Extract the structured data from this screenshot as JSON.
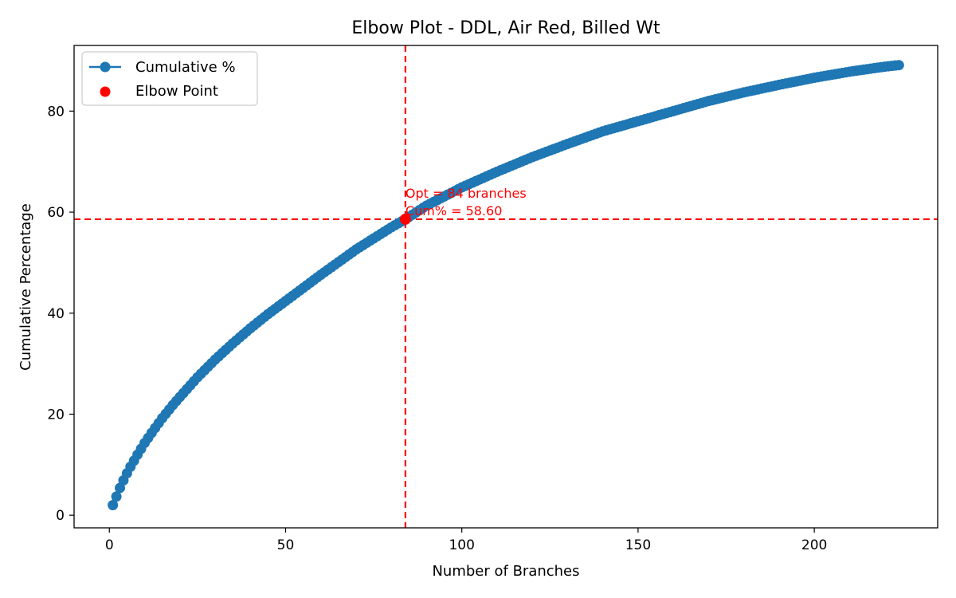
{
  "chart_data": {
    "type": "line",
    "title": "Elbow Plot - DDL, Air Red, Billed Wt",
    "xlabel": "Number of Branches",
    "ylabel": "Cumulative Percentage",
    "xlim": [
      -10,
      235
    ],
    "ylim": [
      -2.5,
      93
    ],
    "xticks": [
      0,
      50,
      100,
      150,
      200
    ],
    "yticks": [
      0,
      20,
      40,
      60,
      80
    ],
    "grid": false,
    "legend_position": "top-left",
    "series": [
      {
        "name": "Cumulative %",
        "color": "#1f77b4",
        "marker": "circle",
        "x": [
          1,
          2,
          3,
          4,
          5,
          6,
          8,
          10,
          12,
          15,
          18,
          20,
          25,
          30,
          35,
          40,
          45,
          50,
          55,
          60,
          65,
          70,
          75,
          80,
          84,
          90,
          95,
          100,
          110,
          120,
          130,
          140,
          150,
          160,
          170,
          180,
          190,
          200,
          210,
          215,
          220,
          224
        ],
        "y": [
          2.0,
          3.7,
          5.4,
          6.9,
          8.3,
          9.6,
          12.0,
          14.3,
          16.3,
          19.2,
          21.8,
          23.4,
          27.3,
          30.8,
          34.0,
          37.0,
          39.8,
          42.4,
          45.0,
          47.6,
          50.1,
          52.6,
          54.8,
          57.0,
          58.6,
          61.3,
          63.1,
          64.9,
          68.0,
          70.9,
          73.5,
          76.0,
          78.0,
          80.0,
          82.0,
          83.7,
          85.2,
          86.6,
          87.8,
          88.3,
          88.8,
          89.1
        ]
      }
    ],
    "elbow_point": {
      "name": "Elbow Point",
      "color": "#ff0000",
      "x": 84,
      "y": 58.6,
      "annotation_line1": "Opt = 84 branches",
      "annotation_line2": "Cum% = 58.60"
    }
  }
}
